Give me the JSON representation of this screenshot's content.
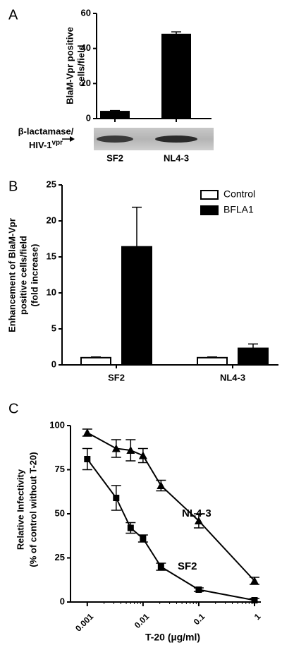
{
  "chart_data": [
    {
      "type": "bar",
      "panel_label": "A",
      "ylabel": [
        "BlaM-Vpr positive",
        "cells/field"
      ],
      "categories": [
        "SF2",
        "NL4-3"
      ],
      "values": [
        4,
        48
      ],
      "errors": [
        0.6,
        1.5
      ],
      "color": "#000000",
      "ylim": [
        0,
        60
      ],
      "yticks": [
        0,
        20,
        40,
        60
      ],
      "blot_label": [
        "β-lactamase/",
        "HIV-1",
        "vpr"
      ]
    },
    {
      "type": "bar",
      "panel_label": "B",
      "ylabel": [
        "Enhancement of BlaM-Vpr",
        "positive cells/field",
        "(fold increase)"
      ],
      "categories": [
        "SF2",
        "NL4-3"
      ],
      "series": [
        {
          "name": "Control",
          "color": "#ffffff",
          "values": [
            1,
            1
          ],
          "errors": [
            0.1,
            0.1
          ]
        },
        {
          "name": "BFLA1",
          "color": "#000000",
          "values": [
            16.4,
            2.3
          ],
          "errors": [
            5.5,
            0.6
          ]
        }
      ],
      "ylim": [
        0,
        25
      ],
      "yticks": [
        0,
        5,
        10,
        15,
        20,
        25
      ],
      "legend": "upper right"
    },
    {
      "type": "line",
      "panel_label": "C",
      "ylabel": [
        "Relative Infectivity",
        "(% of control without T-20)"
      ],
      "xlabel": "T-20 (µg/ml)",
      "xscale": "log",
      "x": [
        0.001,
        0.0033,
        0.006,
        0.01,
        0.021,
        0.1,
        1
      ],
      "series": [
        {
          "name": "NL4-3",
          "color": "#000000",
          "marker": "triangle",
          "values": [
            96,
            87,
            86,
            83,
            66,
            46,
            12
          ],
          "errors": [
            2,
            5,
            6,
            4,
            3,
            4,
            2
          ]
        },
        {
          "name": "SF2",
          "color": "#000000",
          "marker": "square",
          "values": [
            81,
            59,
            42,
            36,
            20,
            7,
            1
          ],
          "errors": [
            6,
            7,
            3,
            2,
            2,
            1,
            1
          ]
        }
      ],
      "xlim": [
        0.0005,
        1.3
      ],
      "xticks": [
        0.001,
        0.01,
        0.1,
        1
      ],
      "ylim": [
        0,
        100
      ],
      "yticks": [
        0,
        25,
        50,
        75,
        100
      ]
    }
  ]
}
